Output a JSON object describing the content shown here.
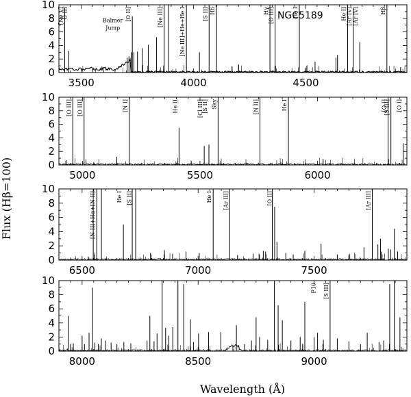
{
  "figure": {
    "ylabel": "Flux (Hβ=100)",
    "xlabel": "Wavelength (Å)"
  },
  "chart_data": [
    {
      "type": "line",
      "xlim": [
        3400,
        4950
      ],
      "ylim": [
        0,
        10
      ],
      "xticks": [
        3500,
        4000,
        4500
      ],
      "yticks": [
        0,
        2,
        4,
        6,
        8,
        10
      ],
      "annotations": [
        {
          "text": "[Ne V]",
          "x": 3426,
          "rot": true
        },
        {
          "text": "O III",
          "x": 3444,
          "rot": true
        },
        {
          "text": "[O II]",
          "x": 3727,
          "rot": true
        },
        {
          "text": "[Ne III]",
          "x": 3869,
          "rot": true
        },
        {
          "text": "[Ne III]+He+He I",
          "x": 3968,
          "rot": true
        },
        {
          "text": "[S II]",
          "x": 4069,
          "rot": true
        },
        {
          "text": "Hδ",
          "x": 4102,
          "rot": true
        },
        {
          "text": "Hγ",
          "x": 4340,
          "rot": true
        },
        {
          "text": "[O III]",
          "x": 4363,
          "rot": true
        },
        {
          "text": "He I",
          "x": 4471,
          "rot": true
        },
        {
          "text": "He II",
          "x": 4686,
          "rot": true
        },
        {
          "text": "[Ar IV]",
          "x": 4711,
          "rot": true
        },
        {
          "text": "[Ar IV]",
          "x": 4740,
          "rot": true
        },
        {
          "text": "Hβ",
          "x": 4861,
          "rot": true
        },
        {
          "text": "Balmer",
          "x": 3640,
          "y": 7.4,
          "rot": false
        },
        {
          "text": "Jump",
          "x": 3640,
          "y": 6.3,
          "rot": false
        },
        {
          "text": "NGC5189",
          "x": 4475,
          "y": 8.0,
          "rot": false,
          "big": true
        }
      ],
      "lines": [
        [
          3426,
          9.5
        ],
        [
          3444,
          3.2
        ],
        [
          3704,
          2.2
        ],
        [
          3712,
          2.4
        ],
        [
          3722,
          3.0
        ],
        [
          3727,
          8.3
        ],
        [
          3734,
          3.0
        ],
        [
          3750,
          3.1
        ],
        [
          3771,
          3.6
        ],
        [
          3798,
          4.1
        ],
        [
          3835,
          5.2
        ],
        [
          3869,
          10.5
        ],
        [
          3889,
          10.5
        ],
        [
          3968,
          10.5
        ],
        [
          4026,
          3.0
        ],
        [
          4069,
          10.5
        ],
        [
          4102,
          10.5
        ],
        [
          4200,
          1.2
        ],
        [
          4340,
          10.5
        ],
        [
          4363,
          10.5
        ],
        [
          4471,
          10.5
        ],
        [
          4541,
          1.6
        ],
        [
          4634,
          2.2
        ],
        [
          4641,
          2.6
        ],
        [
          4686,
          10.5
        ],
        [
          4711,
          9.5
        ],
        [
          4740,
          4.5
        ],
        [
          4861,
          10.5
        ],
        [
          4922,
          0.8
        ]
      ],
      "bumps": [],
      "balmer": true
    },
    {
      "type": "line",
      "xlim": [
        4900,
        6380
      ],
      "ylim": [
        0,
        10
      ],
      "xticks": [
        5000,
        5500,
        6000
      ],
      "yticks": [
        0,
        2,
        4,
        6,
        8,
        10
      ],
      "annotations": [
        {
          "text": "[O III]",
          "x": 4959,
          "rot": true
        },
        {
          "text": "[O III]",
          "x": 5007,
          "rot": true
        },
        {
          "text": "[N I]",
          "x": 5199,
          "rot": true
        },
        {
          "text": "He II",
          "x": 5411,
          "rot": true
        },
        {
          "text": "[Cl III]",
          "x": 5517,
          "rot": true
        },
        {
          "text": "[S II]",
          "x": 5538,
          "rot": true
        },
        {
          "text": "Sky",
          "x": 5577,
          "rot": true
        },
        {
          "text": "[N II]",
          "x": 5755,
          "rot": true
        },
        {
          "text": "He I",
          "x": 5876,
          "rot": true
        },
        {
          "text": "[O I]",
          "x": 6300,
          "rot": true
        },
        {
          "text": "[S III]",
          "x": 6312,
          "rot": true
        },
        {
          "text": "[O I]",
          "x": 6364,
          "rot": true
        }
      ],
      "lines": [
        [
          4931,
          0.7
        ],
        [
          4959,
          10.5
        ],
        [
          5007,
          10.5
        ],
        [
          5015,
          0.8
        ],
        [
          5048,
          0.4
        ],
        [
          5146,
          1.2
        ],
        [
          5199,
          10.5
        ],
        [
          5411,
          5.5
        ],
        [
          5518,
          2.8
        ],
        [
          5538,
          3.0
        ],
        [
          5577,
          10.5
        ],
        [
          5755,
          10.5
        ],
        [
          5876,
          10.5
        ],
        [
          6300,
          10.5
        ],
        [
          6312,
          10.5
        ],
        [
          6364,
          3.2
        ]
      ],
      "bumps": [],
      "balmer": false
    },
    {
      "type": "line",
      "xlim": [
        6400,
        7900
      ],
      "ylim": [
        0,
        10
      ],
      "xticks": [
        6500,
        7000,
        7500
      ],
      "yticks": [
        0,
        2,
        4,
        6,
        8,
        10
      ],
      "annotations": [
        {
          "text": "[N II]+Hα+[N II]",
          "x": 6563,
          "rot": true
        },
        {
          "text": "He I",
          "x": 6678,
          "rot": true
        },
        {
          "text": "[S II]",
          "x": 6720,
          "rot": true
        },
        {
          "text": "He I",
          "x": 7065,
          "rot": true
        },
        {
          "text": "[Ar III]",
          "x": 7136,
          "rot": true
        },
        {
          "text": "[O II]",
          "x": 7325,
          "rot": true
        },
        {
          "text": "[Ar III]",
          "x": 7751,
          "rot": true
        }
      ],
      "lines": [
        [
          6527,
          0.5
        ],
        [
          6548,
          10.5
        ],
        [
          6563,
          10.5
        ],
        [
          6583,
          10.5
        ],
        [
          6678,
          5.0
        ],
        [
          6716,
          10.5
        ],
        [
          6731,
          10.5
        ],
        [
          6795,
          1.0
        ],
        [
          6855,
          1.4
        ],
        [
          6890,
          0.9
        ],
        [
          6948,
          1.2
        ],
        [
          7005,
          1.0
        ],
        [
          7065,
          10.5
        ],
        [
          7136,
          10.5
        ],
        [
          7170,
          0.7
        ],
        [
          7237,
          0.9
        ],
        [
          7264,
          0.8
        ],
        [
          7281,
          1.3
        ],
        [
          7291,
          1.2
        ],
        [
          7320,
          10.5
        ],
        [
          7330,
          7.5
        ],
        [
          7340,
          2.5
        ],
        [
          7378,
          1.0
        ],
        [
          7410,
          0.8
        ],
        [
          7460,
          1.3
        ],
        [
          7530,
          2.3
        ],
        [
          7600,
          0.8
        ],
        [
          7650,
          0.8
        ],
        [
          7715,
          1.8
        ],
        [
          7751,
          10.5
        ],
        [
          7775,
          2.2
        ],
        [
          7786,
          3.0
        ],
        [
          7790,
          1.2
        ],
        [
          7820,
          1.6
        ],
        [
          7830,
          1.5
        ],
        [
          7846,
          4.4
        ],
        [
          7860,
          1.2
        ]
      ],
      "bumps": [],
      "balmer": false
    },
    {
      "type": "line",
      "xlim": [
        7900,
        9400
      ],
      "ylim": [
        0,
        10
      ],
      "xticks": [
        8000,
        8500,
        9000
      ],
      "yticks": [
        0,
        2,
        4,
        6,
        8,
        10
      ],
      "annotations": [
        {
          "text": "P10",
          "x": 9015,
          "rot": true
        },
        {
          "text": "[S III]",
          "x": 9069,
          "rot": true
        }
      ],
      "lines": [
        [
          7940,
          5.0
        ],
        [
          7950,
          1.0
        ],
        [
          7962,
          1.1
        ],
        [
          8000,
          2.2
        ],
        [
          8010,
          1.0
        ],
        [
          8030,
          2.6
        ],
        [
          8045,
          9.0
        ],
        [
          8055,
          1.2
        ],
        [
          8070,
          1.0
        ],
        [
          8083,
          1.8
        ],
        [
          8100,
          1.5
        ],
        [
          8125,
          1.2
        ],
        [
          8150,
          1.0
        ],
        [
          8180,
          1.3
        ],
        [
          8210,
          1.1
        ],
        [
          8280,
          1.5
        ],
        [
          8292,
          5.0
        ],
        [
          8310,
          1.4
        ],
        [
          8323,
          2.5
        ],
        [
          8345,
          10.0
        ],
        [
          8360,
          3.3
        ],
        [
          8374,
          2.2
        ],
        [
          8391,
          3.4
        ],
        [
          8413,
          10.5
        ],
        [
          8438,
          9.5
        ],
        [
          8467,
          4.5
        ],
        [
          8480,
          1.3
        ],
        [
          8502,
          2.5
        ],
        [
          8545,
          2.7
        ],
        [
          8598,
          2.7
        ],
        [
          8665,
          3.7
        ],
        [
          8700,
          1.0
        ],
        [
          8730,
          1.5
        ],
        [
          8750,
          4.8
        ],
        [
          8765,
          2.0
        ],
        [
          8800,
          1.6
        ],
        [
          8829,
          10.5
        ],
        [
          8845,
          6.5
        ],
        [
          8863,
          4.4
        ],
        [
          8900,
          1.5
        ],
        [
          8940,
          2.0
        ],
        [
          8960,
          7.0
        ],
        [
          9000,
          2.0
        ],
        [
          9015,
          2.6
        ],
        [
          9040,
          1.6
        ],
        [
          9069,
          10.5
        ],
        [
          9100,
          1.8
        ],
        [
          9150,
          1.4
        ],
        [
          9200,
          1.0
        ],
        [
          9229,
          2.6
        ],
        [
          9280,
          1.3
        ],
        [
          9300,
          1.5
        ],
        [
          9326,
          9.5
        ],
        [
          9346,
          10.0
        ],
        [
          9370,
          4.8
        ]
      ],
      "bumps": [
        [
          8620,
          8690,
          0.7
        ]
      ],
      "balmer": false
    }
  ]
}
